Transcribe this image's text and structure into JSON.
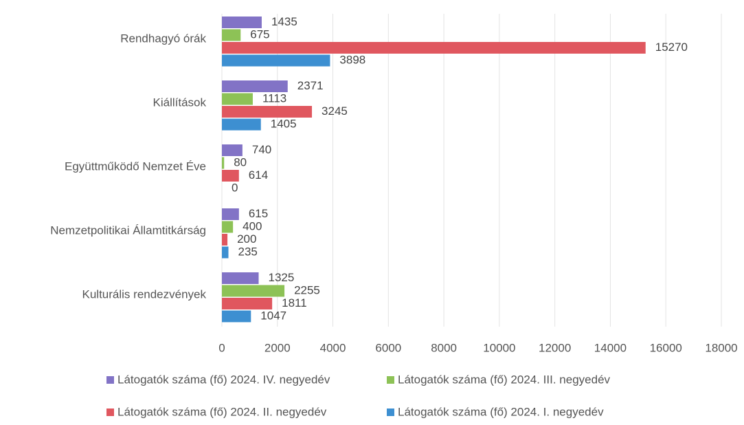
{
  "chart_data": {
    "type": "bar",
    "orientation": "horizontal",
    "categories": [
      "Rendhagyó órák",
      "Kiállítások",
      "Együttműködő Nemzet Éve",
      "Nemzetpolitikai Államtitkárság",
      "Kulturális rendezvények"
    ],
    "series": [
      {
        "name": "Látogatók száma (fő) 2024. IV. negyedév",
        "color": "#8273c6",
        "values": [
          1435,
          2371,
          740,
          615,
          1325
        ]
      },
      {
        "name": "Látogatók száma (fő) 2024. III. negyedév",
        "color": "#8dc256",
        "values": [
          675,
          1113,
          80,
          400,
          2255
        ]
      },
      {
        "name": "Látogatók száma (fő) 2024. II. negyedév",
        "color": "#e0575f",
        "values": [
          15270,
          3245,
          614,
          200,
          1811
        ]
      },
      {
        "name": "Látogatók száma (fő) 2024. I. negyedév",
        "color": "#3d8fd1",
        "values": [
          3898,
          1405,
          0,
          235,
          1047
        ]
      }
    ],
    "xlim": [
      0,
      18000
    ],
    "xticks": [
      0,
      2000,
      4000,
      6000,
      8000,
      10000,
      12000,
      14000,
      16000,
      18000
    ],
    "grid": true
  }
}
